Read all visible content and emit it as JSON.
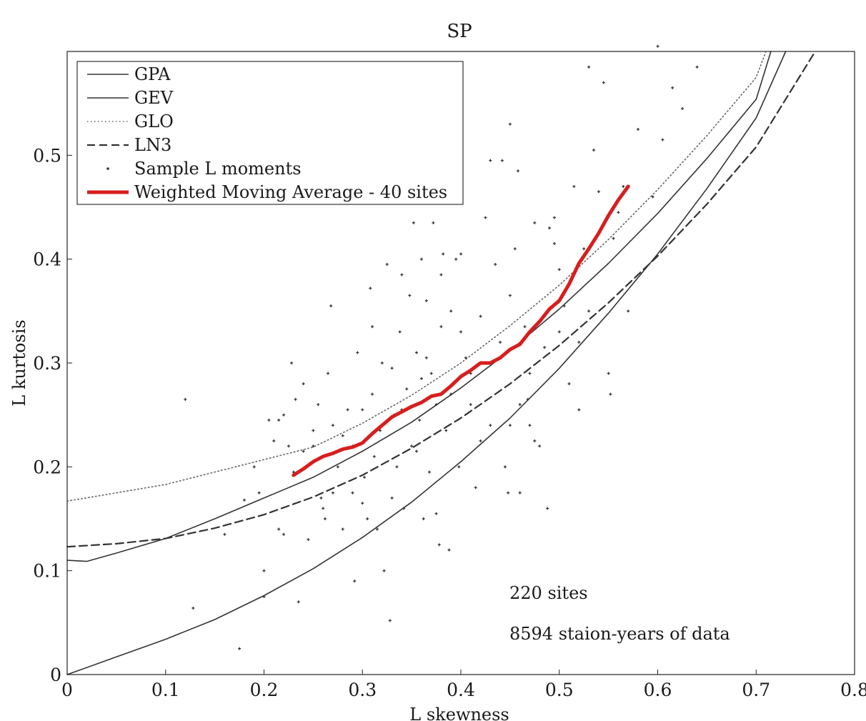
{
  "chart_data": {
    "type": "line",
    "title": "SP",
    "xlabel": "L skewness",
    "ylabel": "L kurtosis",
    "xlim": [
      0,
      0.8
    ],
    "ylim": [
      0,
      0.6
    ],
    "xticks": [
      "0",
      "0.1",
      "0.2",
      "0.3",
      "0.4",
      "0.5",
      "0.6",
      "0.7",
      "0.8"
    ],
    "yticks": [
      "0",
      "0.1",
      "0.2",
      "0.3",
      "0.4",
      "0.5"
    ],
    "legend_position": "top-left",
    "annotations": [
      "220 sites",
      "8594 staion-years of data"
    ],
    "series": [
      {
        "name": "GPA",
        "style": "solid",
        "color": "#333333",
        "x": [
          0,
          0.05,
          0.1,
          0.15,
          0.2,
          0.25,
          0.3,
          0.35,
          0.4,
          0.45,
          0.5,
          0.55,
          0.6,
          0.65,
          0.7,
          0.73
        ],
        "y": [
          0,
          0.017,
          0.034,
          0.053,
          0.076,
          0.102,
          0.132,
          0.166,
          0.205,
          0.247,
          0.295,
          0.348,
          0.405,
          0.468,
          0.536,
          0.6
        ]
      },
      {
        "name": "GEV",
        "style": "solid",
        "color": "#333333",
        "x": [
          0,
          0.02,
          0.05,
          0.1,
          0.15,
          0.2,
          0.25,
          0.3,
          0.35,
          0.4,
          0.45,
          0.5,
          0.55,
          0.6,
          0.65,
          0.7,
          0.715
        ],
        "y": [
          0.11,
          0.109,
          0.117,
          0.131,
          0.15,
          0.17,
          0.19,
          0.215,
          0.243,
          0.276,
          0.312,
          0.352,
          0.396,
          0.444,
          0.497,
          0.554,
          0.6
        ]
      },
      {
        "name": "GLO",
        "style": "dotted",
        "color": "#666666",
        "x": [
          0,
          0.05,
          0.1,
          0.15,
          0.2,
          0.25,
          0.3,
          0.35,
          0.4,
          0.45,
          0.5,
          0.55,
          0.6,
          0.65,
          0.7,
          0.71
        ],
        "y": [
          0.167,
          0.175,
          0.183,
          0.195,
          0.207,
          0.219,
          0.242,
          0.269,
          0.3,
          0.336,
          0.375,
          0.419,
          0.467,
          0.519,
          0.575,
          0.6
        ]
      },
      {
        "name": "LN3",
        "style": "dashed",
        "color": "#333333",
        "x": [
          0,
          0.05,
          0.1,
          0.15,
          0.2,
          0.25,
          0.3,
          0.35,
          0.4,
          0.45,
          0.5,
          0.55,
          0.6,
          0.65,
          0.7,
          0.76
        ],
        "y": [
          0.123,
          0.126,
          0.131,
          0.141,
          0.154,
          0.171,
          0.192,
          0.218,
          0.247,
          0.28,
          0.317,
          0.358,
          0.403,
          0.453,
          0.508,
          0.6
        ]
      },
      {
        "name": "Sample L moments",
        "style": "points",
        "color": "#333333",
        "points": [
          [
            0.12,
            0.265
          ],
          [
            0.128,
            0.064
          ],
          [
            0.175,
            0.025
          ],
          [
            0.18,
            0.168
          ],
          [
            0.19,
            0.2
          ],
          [
            0.2,
            0.1
          ],
          [
            0.2,
            0.075
          ],
          [
            0.205,
            0.245
          ],
          [
            0.21,
            0.225
          ],
          [
            0.215,
            0.14
          ],
          [
            0.22,
            0.135
          ],
          [
            0.225,
            0.22
          ],
          [
            0.228,
            0.3
          ],
          [
            0.232,
            0.265
          ],
          [
            0.235,
            0.07
          ],
          [
            0.24,
            0.215
          ],
          [
            0.245,
            0.13
          ],
          [
            0.25,
            0.235
          ],
          [
            0.255,
            0.26
          ],
          [
            0.258,
            0.17
          ],
          [
            0.262,
            0.15
          ],
          [
            0.265,
            0.29
          ],
          [
            0.268,
            0.355
          ],
          [
            0.27,
            0.24
          ],
          [
            0.275,
            0.2
          ],
          [
            0.28,
            0.23
          ],
          [
            0.285,
            0.255
          ],
          [
            0.29,
            0.175
          ],
          [
            0.292,
            0.09
          ],
          [
            0.295,
            0.31
          ],
          [
            0.3,
            0.255
          ],
          [
            0.302,
            0.19
          ],
          [
            0.305,
            0.15
          ],
          [
            0.308,
            0.372
          ],
          [
            0.31,
            0.27
          ],
          [
            0.312,
            0.21
          ],
          [
            0.315,
            0.14
          ],
          [
            0.318,
            0.235
          ],
          [
            0.32,
            0.3
          ],
          [
            0.322,
            0.1
          ],
          [
            0.325,
            0.395
          ],
          [
            0.328,
            0.052
          ],
          [
            0.33,
            0.295
          ],
          [
            0.332,
            0.25
          ],
          [
            0.335,
            0.2
          ],
          [
            0.338,
            0.33
          ],
          [
            0.34,
            0.385
          ],
          [
            0.342,
            0.16
          ],
          [
            0.345,
            0.275
          ],
          [
            0.348,
            0.365
          ],
          [
            0.35,
            0.22
          ],
          [
            0.352,
            0.435
          ],
          [
            0.355,
            0.31
          ],
          [
            0.358,
            0.245
          ],
          [
            0.36,
            0.4
          ],
          [
            0.362,
            0.15
          ],
          [
            0.365,
            0.36
          ],
          [
            0.368,
            0.195
          ],
          [
            0.37,
            0.29
          ],
          [
            0.372,
            0.435
          ],
          [
            0.375,
            0.26
          ],
          [
            0.378,
            0.125
          ],
          [
            0.38,
            0.335
          ],
          [
            0.382,
            0.405
          ],
          [
            0.385,
            0.235
          ],
          [
            0.388,
            0.12
          ],
          [
            0.39,
            0.35
          ],
          [
            0.392,
            0.28
          ],
          [
            0.395,
            0.4
          ],
          [
            0.398,
            0.2
          ],
          [
            0.4,
            0.33
          ],
          [
            0.405,
            0.305
          ],
          [
            0.41,
            0.26
          ],
          [
            0.415,
            0.18
          ],
          [
            0.42,
            0.345
          ],
          [
            0.425,
            0.44
          ],
          [
            0.43,
            0.24
          ],
          [
            0.435,
            0.395
          ],
          [
            0.44,
            0.32
          ],
          [
            0.442,
            0.495
          ],
          [
            0.445,
            0.2
          ],
          [
            0.448,
            0.175
          ],
          [
            0.45,
            0.365
          ],
          [
            0.455,
            0.41
          ],
          [
            0.458,
            0.485
          ],
          [
            0.46,
            0.175
          ],
          [
            0.465,
            0.335
          ],
          [
            0.468,
            0.265
          ],
          [
            0.47,
            0.24
          ],
          [
            0.475,
            0.435
          ],
          [
            0.48,
            0.22
          ],
          [
            0.485,
            0.315
          ],
          [
            0.488,
            0.16
          ],
          [
            0.49,
            0.43
          ],
          [
            0.495,
            0.44
          ],
          [
            0.5,
            0.39
          ],
          [
            0.505,
            0.355
          ],
          [
            0.51,
            0.28
          ],
          [
            0.515,
            0.47
          ],
          [
            0.52,
            0.255
          ],
          [
            0.525,
            0.41
          ],
          [
            0.53,
            0.585
          ],
          [
            0.535,
            0.505
          ],
          [
            0.54,
            0.465
          ],
          [
            0.545,
            0.57
          ],
          [
            0.55,
            0.29
          ],
          [
            0.552,
            0.27
          ],
          [
            0.555,
            0.42
          ],
          [
            0.56,
            0.445
          ],
          [
            0.565,
            0.47
          ],
          [
            0.57,
            0.35
          ],
          [
            0.58,
            0.525
          ],
          [
            0.595,
            0.46
          ],
          [
            0.6,
            0.605
          ],
          [
            0.605,
            0.515
          ],
          [
            0.615,
            0.565
          ],
          [
            0.625,
            0.545
          ],
          [
            0.64,
            0.585
          ],
          [
            0.45,
            0.53
          ],
          [
            0.43,
            0.495
          ],
          [
            0.4,
            0.405
          ],
          [
            0.38,
            0.385
          ],
          [
            0.36,
            0.285
          ],
          [
            0.34,
            0.255
          ],
          [
            0.31,
            0.335
          ],
          [
            0.29,
            0.22
          ],
          [
            0.27,
            0.175
          ],
          [
            0.25,
            0.22
          ],
          [
            0.23,
            0.195
          ],
          [
            0.215,
            0.245
          ],
          [
            0.195,
            0.175
          ],
          [
            0.16,
            0.135
          ],
          [
            0.45,
            0.24
          ],
          [
            0.47,
            0.29
          ],
          [
            0.5,
            0.33
          ],
          [
            0.53,
            0.35
          ],
          [
            0.495,
            0.415
          ],
          [
            0.475,
            0.225
          ],
          [
            0.41,
            0.29
          ],
          [
            0.39,
            0.27
          ],
          [
            0.375,
            0.155
          ],
          [
            0.355,
            0.215
          ],
          [
            0.33,
            0.17
          ],
          [
            0.3,
            0.165
          ],
          [
            0.28,
            0.14
          ],
          [
            0.26,
            0.16
          ],
          [
            0.24,
            0.28
          ],
          [
            0.22,
            0.25
          ],
          [
            0.365,
            0.305
          ],
          [
            0.42,
            0.225
          ],
          [
            0.44,
            0.305
          ],
          [
            0.46,
            0.26
          ],
          [
            0.52,
            0.32
          ]
        ]
      },
      {
        "name": "Weighted Moving Average - 40 sites",
        "style": "thick",
        "color": "#d71e1e",
        "x": [
          0.23,
          0.24,
          0.25,
          0.26,
          0.27,
          0.28,
          0.29,
          0.3,
          0.31,
          0.32,
          0.33,
          0.34,
          0.35,
          0.36,
          0.37,
          0.38,
          0.39,
          0.4,
          0.41,
          0.42,
          0.43,
          0.44,
          0.45,
          0.46,
          0.47,
          0.48,
          0.49,
          0.5,
          0.51,
          0.52,
          0.53,
          0.54,
          0.55,
          0.56,
          0.57
        ],
        "y": [
          0.192,
          0.198,
          0.205,
          0.21,
          0.213,
          0.217,
          0.219,
          0.223,
          0.232,
          0.24,
          0.248,
          0.253,
          0.258,
          0.262,
          0.268,
          0.27,
          0.278,
          0.287,
          0.293,
          0.3,
          0.3,
          0.305,
          0.313,
          0.318,
          0.33,
          0.34,
          0.352,
          0.36,
          0.376,
          0.396,
          0.41,
          0.425,
          0.442,
          0.457,
          0.47
        ]
      }
    ]
  }
}
